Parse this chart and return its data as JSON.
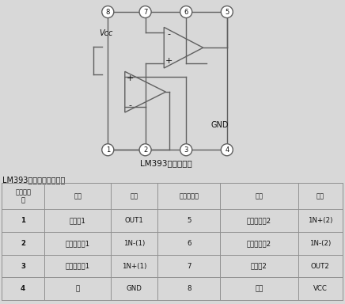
{
  "title_circuit": "LM393内部结构图",
  "table_title": "LM393引脚功能排列表：",
  "bg_color": "#d8d8d8",
  "table_header_row1": [
    "引出端序\n号",
    "功能",
    "符号",
    "引出端序号",
    "功能",
    "符号"
  ],
  "table_rows": [
    [
      "1",
      "输出端1",
      "OUT1",
      "5",
      "正向输入端2",
      "1N+(2)"
    ],
    [
      "2",
      "反向输入端1",
      "1N-(1)",
      "6",
      "反向输入端2",
      "1N-(2)"
    ],
    [
      "3",
      "正向输入端1",
      "1N+(1)",
      "7",
      "输出端2",
      "OUT2"
    ],
    [
      "4",
      "地",
      "GND",
      "8",
      "电源",
      "VCC"
    ]
  ],
  "line_color": "#606060",
  "pin_colors": {
    "fill": "#ffffff",
    "edge": "#606060"
  },
  "table_line_color": "#909090",
  "vcc_label": "Vcc",
  "gnd_label": "GND"
}
